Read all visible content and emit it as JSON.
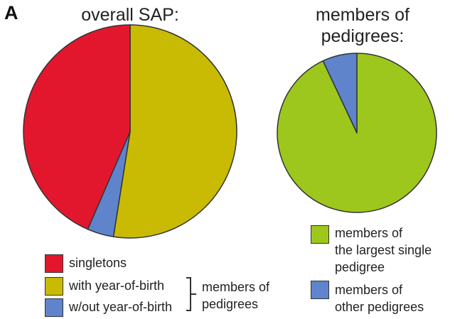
{
  "panel_label": "A",
  "colors": {
    "singletons": "#e2172d",
    "with_yob": "#c9bb04",
    "without_yob": "#5f84cc",
    "largest": "#9dc71d",
    "other": "#5f84cc",
    "outline": "#333333"
  },
  "chart_data": [
    {
      "type": "pie",
      "title": "overall SAP:",
      "slices": [
        {
          "label": "with year-of-birth",
          "value": 52.5,
          "color": "#c9bb04"
        },
        {
          "label": "w/out year-of-birth",
          "value": 4.0,
          "color": "#5f84cc"
        },
        {
          "label": "singletons",
          "value": 43.5,
          "color": "#e2172d"
        }
      ],
      "legend": {
        "position": "bottom",
        "entries": [
          "singletons",
          "with year-of-birth",
          "w/out year-of-birth"
        ],
        "bracket_label": [
          "members of",
          "pedigrees"
        ]
      }
    },
    {
      "type": "pie",
      "title": [
        "members of",
        "pedigrees:"
      ],
      "slices": [
        {
          "label": "members of the largest single pedigree",
          "value": 93,
          "color": "#9dc71d"
        },
        {
          "label": "members of other pedigrees",
          "value": 7,
          "color": "#5f84cc"
        }
      ],
      "legend": {
        "position": "bottom",
        "entries": [
          [
            "members of",
            "the largest single",
            "pedigree"
          ],
          [
            "members of",
            "other pedigrees"
          ]
        ]
      }
    }
  ]
}
